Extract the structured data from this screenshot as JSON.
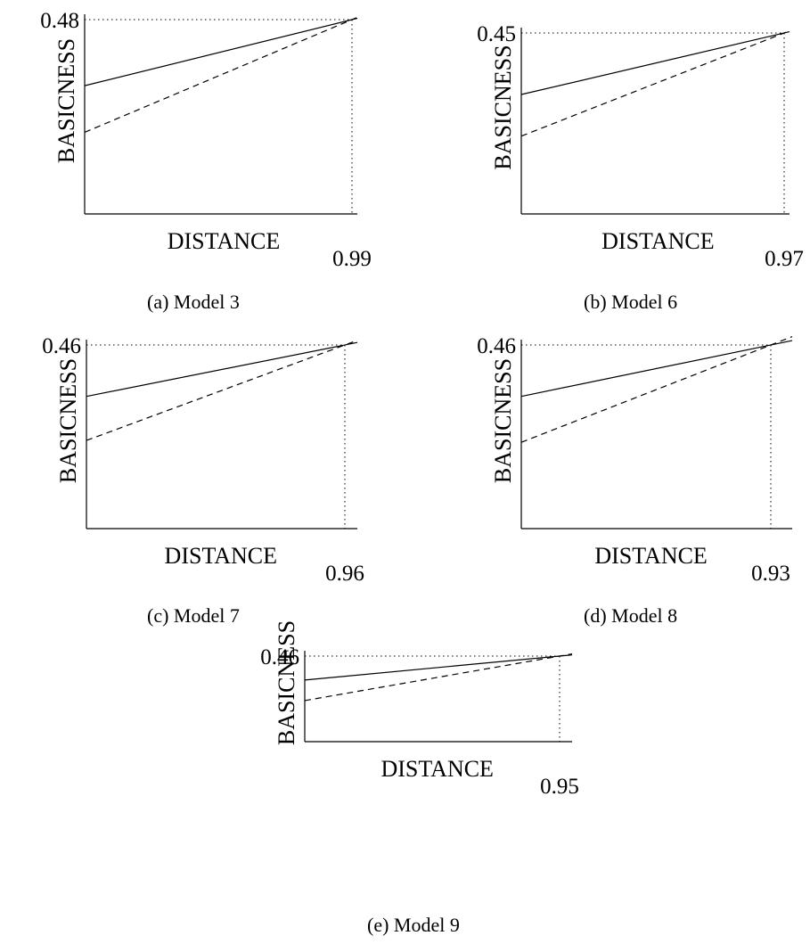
{
  "chart_data": [
    {
      "type": "line",
      "caption": "(a) Model 3",
      "xlabel": "DISTANCE",
      "ylabel": "BASICNESS",
      "x_tick": "0.99",
      "y_tick": "0.48",
      "intersection": {
        "x": 0.99,
        "y": 0.48
      },
      "series": [
        {
          "style": "solid",
          "start_level": 0.66,
          "end_level": 1.0
        },
        {
          "style": "dashed",
          "start_level": 0.42,
          "end_level": 1.0
        }
      ]
    },
    {
      "type": "line",
      "caption": "(b) Model 6",
      "xlabel": "DISTANCE",
      "ylabel": "BASICNESS",
      "x_tick": "0.97",
      "y_tick": "0.45",
      "intersection": {
        "x": 0.97,
        "y": 0.45
      },
      "series": [
        {
          "style": "solid",
          "start_level": 0.66,
          "end_level": 1.0
        },
        {
          "style": "dashed",
          "start_level": 0.43,
          "end_level": 1.0
        }
      ]
    },
    {
      "type": "line",
      "caption": "(c) Model 7",
      "xlabel": "DISTANCE",
      "ylabel": "BASICNESS",
      "x_tick": "0.96",
      "y_tick": "0.46",
      "intersection": {
        "x": 0.96,
        "y": 0.46
      },
      "series": [
        {
          "style": "solid",
          "start_level": 0.72,
          "end_level": 1.0
        },
        {
          "style": "dashed",
          "start_level": 0.48,
          "end_level": 1.0
        }
      ]
    },
    {
      "type": "line",
      "caption": "(d) Model 8",
      "xlabel": "DISTANCE",
      "ylabel": "BASICNESS",
      "x_tick": "0.93",
      "y_tick": "0.46",
      "intersection": {
        "x": 0.93,
        "y": 0.46
      },
      "series": [
        {
          "style": "solid",
          "start_level": 0.72,
          "end_level": 1.0
        },
        {
          "style": "dashed",
          "start_level": 0.47,
          "end_level": 1.0
        }
      ]
    },
    {
      "type": "line",
      "caption": "(e) Model 9",
      "xlabel": "DISTANCE",
      "ylabel": "BASICNESS",
      "x_tick": "0.95",
      "y_tick": "0.46",
      "intersection": {
        "x": 0.95,
        "y": 0.46
      },
      "series": [
        {
          "style": "solid",
          "start_level": 0.72,
          "end_level": 1.0
        },
        {
          "style": "dashed",
          "start_level": 0.48,
          "end_level": 1.0
        }
      ]
    }
  ]
}
